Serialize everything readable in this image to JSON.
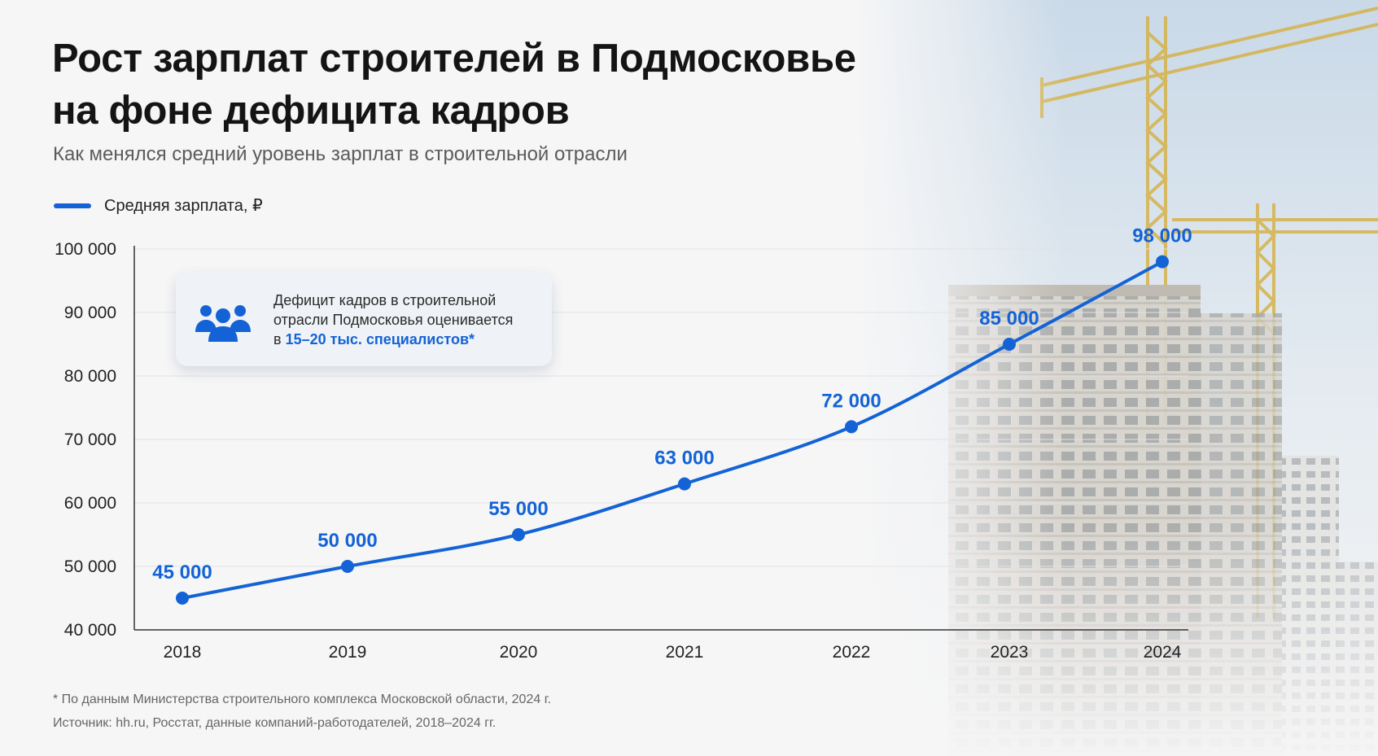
{
  "header": {
    "title_line1": "Рост зарплат строителей в Подмосковье",
    "title_line2": "на фоне дефицита кадров",
    "subtitle": "Как менялся средний уровень зарплат в строительной отрасли"
  },
  "legend": {
    "label": "Средняя зарплата, ₽"
  },
  "callout": {
    "icon": "people-group-icon",
    "text_line1": "Дефицит кадров в строительной",
    "text_line2": "отрасли Подмосковья оценивается",
    "text_prefix": "в",
    "highlight": "15–20 тыс. специалистов*"
  },
  "footer": {
    "footnote": "* По данным Министерства строительного комплекса Московской области, 2024 г.",
    "source": "Источник: hh.ru, Росстат, данные компаний-работодателей, 2018–2024 гг."
  },
  "colors": {
    "accent": "#1363d6",
    "axis": "#333333",
    "grid": "#e2e2e2"
  },
  "chart_data": {
    "type": "line",
    "title": "Рост зарплат строителей в Подмосковье на фоне дефицита кадров",
    "subtitle": "Как менялся средний уровень зарплат в строительной отрасли",
    "categories": [
      "2018",
      "2019",
      "2020",
      "2021",
      "2022",
      "2023",
      "2024"
    ],
    "series": [
      {
        "name": "Средняя зарплата, ₽",
        "values": [
          45000,
          50000,
          55000,
          63000,
          72000,
          85000,
          98000
        ],
        "labels": [
          "45 000",
          "50 000",
          "55 000",
          "63 000",
          "72 000",
          "85 000",
          "98 000"
        ]
      }
    ],
    "ylim": [
      40000,
      100000
    ],
    "yticks": [
      40000,
      50000,
      60000,
      70000,
      80000,
      90000,
      100000
    ],
    "ytick_labels": [
      "40 000",
      "50 000",
      "60 000",
      "70 000",
      "80 000",
      "90 000",
      "100 000"
    ],
    "grid": true,
    "legend_position": "top-left"
  }
}
